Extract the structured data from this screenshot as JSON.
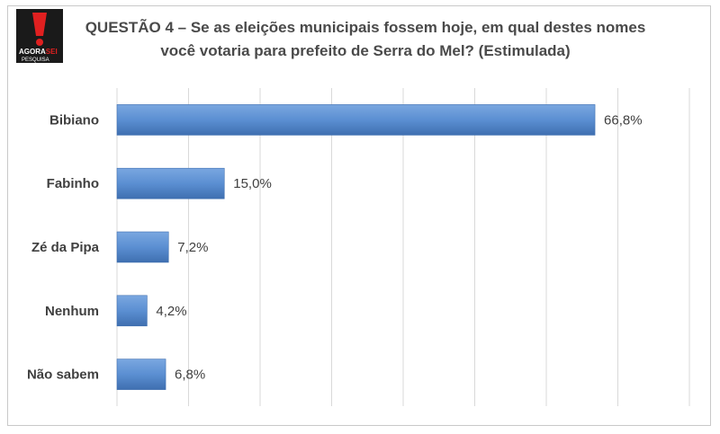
{
  "logo": {
    "brand": "AGORA",
    "brand_accent": "SEI",
    "sub": "PESQUISA",
    "mark": "!"
  },
  "title": "QUESTÃO 4 – Se as eleições municipais fossem hoje, em qual destes nomes você votaria para prefeito de Serra do Mel? (Estimulada)",
  "colors": {
    "bar": "#5b8fd2",
    "bar_dark": "#3f6fb0",
    "grid": "#d9d9d9",
    "accent": "#e02020"
  },
  "chart_data": {
    "type": "bar",
    "orientation": "horizontal",
    "categories": [
      "Bibiano",
      "Fabinho",
      "Zé da Pipa",
      "Nenhum",
      "Não sabem"
    ],
    "values": [
      66.8,
      15.0,
      7.2,
      4.2,
      6.8
    ],
    "value_labels": [
      "66,8%",
      "15,0%",
      "7,2%",
      "4,2%",
      "6,8%"
    ],
    "xlim": [
      0,
      80
    ],
    "grid": true,
    "legend": "none"
  }
}
